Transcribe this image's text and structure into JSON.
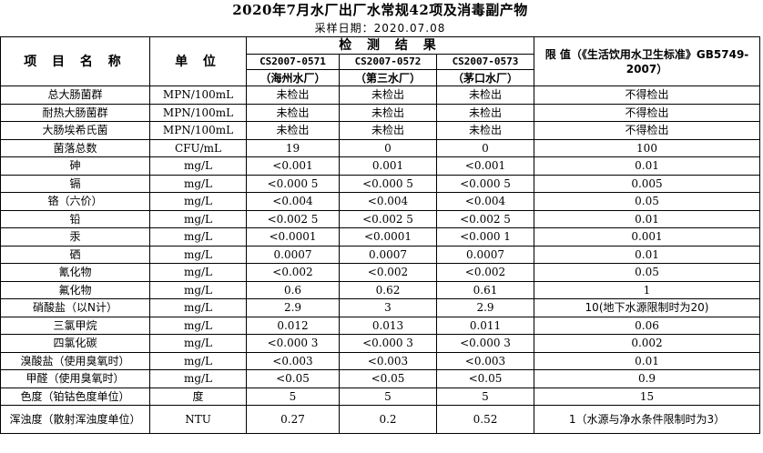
{
  "title": "2020年7月水厂出厂水常规42项及消毒副产物",
  "sampling_date": "采样日期：2020.07.08",
  "header": {
    "item_name": "项 目 名 称",
    "unit": "单 位",
    "results": "检 测 结 果",
    "limit": "限  值（《生活饮用水卫生标准》GB5749-2007）",
    "sites": [
      {
        "code": "CS2007-0571",
        "plant": "（海州水厂）"
      },
      {
        "code": "CS2007-0572",
        "plant": "（第三水厂）"
      },
      {
        "code": "CS2007-0573",
        "plant": "（茅口水厂）"
      }
    ]
  },
  "rows": [
    {
      "item": "总大肠菌群",
      "unit": "MPN/100mL",
      "v1": "未检出",
      "v2": "未检出",
      "v3": "未检出",
      "limit": "不得检出"
    },
    {
      "item": "耐热大肠菌群",
      "unit": "MPN/100mL",
      "v1": "未检出",
      "v2": "未检出",
      "v3": "未检出",
      "limit": "不得检出"
    },
    {
      "item": "大肠埃希氏菌",
      "unit": "MPN/100mL",
      "v1": "未检出",
      "v2": "未检出",
      "v3": "未检出",
      "limit": "不得检出"
    },
    {
      "item": "菌落总数",
      "unit": "CFU/mL",
      "v1": "19",
      "v2": "0",
      "v3": "0",
      "limit": "100"
    },
    {
      "item": "砷",
      "unit": "mg/L",
      "v1": "<0.001",
      "v2": "0.001",
      "v3": "<0.001",
      "limit": "0.01"
    },
    {
      "item": "镉",
      "unit": "mg/L",
      "v1": "<0.000 5",
      "v2": "<0.000 5",
      "v3": "<0.000 5",
      "limit": "0.005"
    },
    {
      "item": "铬（六价）",
      "unit": "mg/L",
      "v1": "<0.004",
      "v2": "<0.004",
      "v3": "<0.004",
      "limit": "0.05"
    },
    {
      "item": "铅",
      "unit": "mg/L",
      "v1": "<0.002 5",
      "v2": "<0.002 5",
      "v3": "<0.002 5",
      "limit": "0.01"
    },
    {
      "item": "汞",
      "unit": "mg/L",
      "v1": "<0.0001",
      "v2": "<0.0001",
      "v3": "<0.000 1",
      "limit": "0.001"
    },
    {
      "item": "硒",
      "unit": "mg/L",
      "v1": "0.0007",
      "v2": "0.0007",
      "v3": "0.0007",
      "limit": "0.01"
    },
    {
      "item": "氰化物",
      "unit": "mg/L",
      "v1": "<0.002",
      "v2": "<0.002",
      "v3": "<0.002",
      "limit": "0.05"
    },
    {
      "item": "氟化物",
      "unit": "mg/L",
      "v1": "0.6",
      "v2": "0.62",
      "v3": "0.61",
      "limit": "1"
    },
    {
      "item": "硝酸盐（以N计）",
      "unit": "mg/L",
      "v1": "2.9",
      "v2": "3",
      "v3": "2.9",
      "limit": "10(地下水源限制时为20)"
    },
    {
      "item": "三氯甲烷",
      "unit": "mg/L",
      "v1": "0.012",
      "v2": "0.013",
      "v3": "0.011",
      "limit": "0.06"
    },
    {
      "item": "四氯化碳",
      "unit": "mg/L",
      "v1": "<0.000 3",
      "v2": "<0.000 3",
      "v3": "<0.000 3",
      "limit": "0.002"
    },
    {
      "item": "溴酸盐（使用臭氧时）",
      "unit": "mg/L",
      "v1": "<0.003",
      "v2": "<0.003",
      "v3": "<0.003",
      "limit": "0.01"
    },
    {
      "item": "甲醛（使用臭氧时）",
      "unit": "mg/L",
      "v1": "<0.05",
      "v2": "<0.05",
      "v3": "<0.05",
      "limit": "0.9"
    },
    {
      "item": "色度（铂钴色度单位）",
      "unit": "度",
      "v1": "5",
      "v2": "5",
      "v3": "5",
      "limit": "15"
    },
    {
      "item": "浑浊度（散射浑浊度单位）",
      "unit": "NTU",
      "v1": "0.27",
      "v2": "0.2",
      "v3": "0.52",
      "limit": "1（水源与净水条件限制时为3）"
    }
  ]
}
